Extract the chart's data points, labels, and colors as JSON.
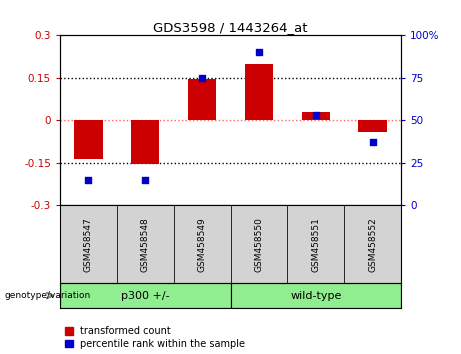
{
  "title": "GDS3598 / 1443264_at",
  "samples": [
    "GSM458547",
    "GSM458548",
    "GSM458549",
    "GSM458550",
    "GSM458551",
    "GSM458552"
  ],
  "red_values": [
    -0.135,
    -0.155,
    0.145,
    0.2,
    0.03,
    -0.04
  ],
  "blue_values_pct": [
    15,
    15,
    75,
    90,
    53,
    37
  ],
  "ylim_left": [
    -0.3,
    0.3
  ],
  "ylim_right": [
    0,
    100
  ],
  "yticks_left": [
    -0.3,
    -0.15,
    0,
    0.15,
    0.3
  ],
  "yticks_right": [
    0,
    25,
    50,
    75,
    100
  ],
  "hlines": [
    0.15,
    0,
    -0.15
  ],
  "group_bg_color": "#90EE90",
  "tick_label_bg": "#d3d3d3",
  "bar_width": 0.5,
  "dot_size": 25,
  "red_color": "#CC0000",
  "blue_color": "#0000CC",
  "zero_line_color": "#FF6666",
  "grid_line_color": "#000000",
  "legend_items": [
    "transformed count",
    "percentile rank within the sample"
  ],
  "ylabel_left_color": "#CC0000",
  "ylabel_right_color": "#0000CC",
  "groups": [
    {
      "label": "p300 +/-",
      "start": 0,
      "end": 2
    },
    {
      "label": "wild-type",
      "start": 3,
      "end": 5
    }
  ]
}
